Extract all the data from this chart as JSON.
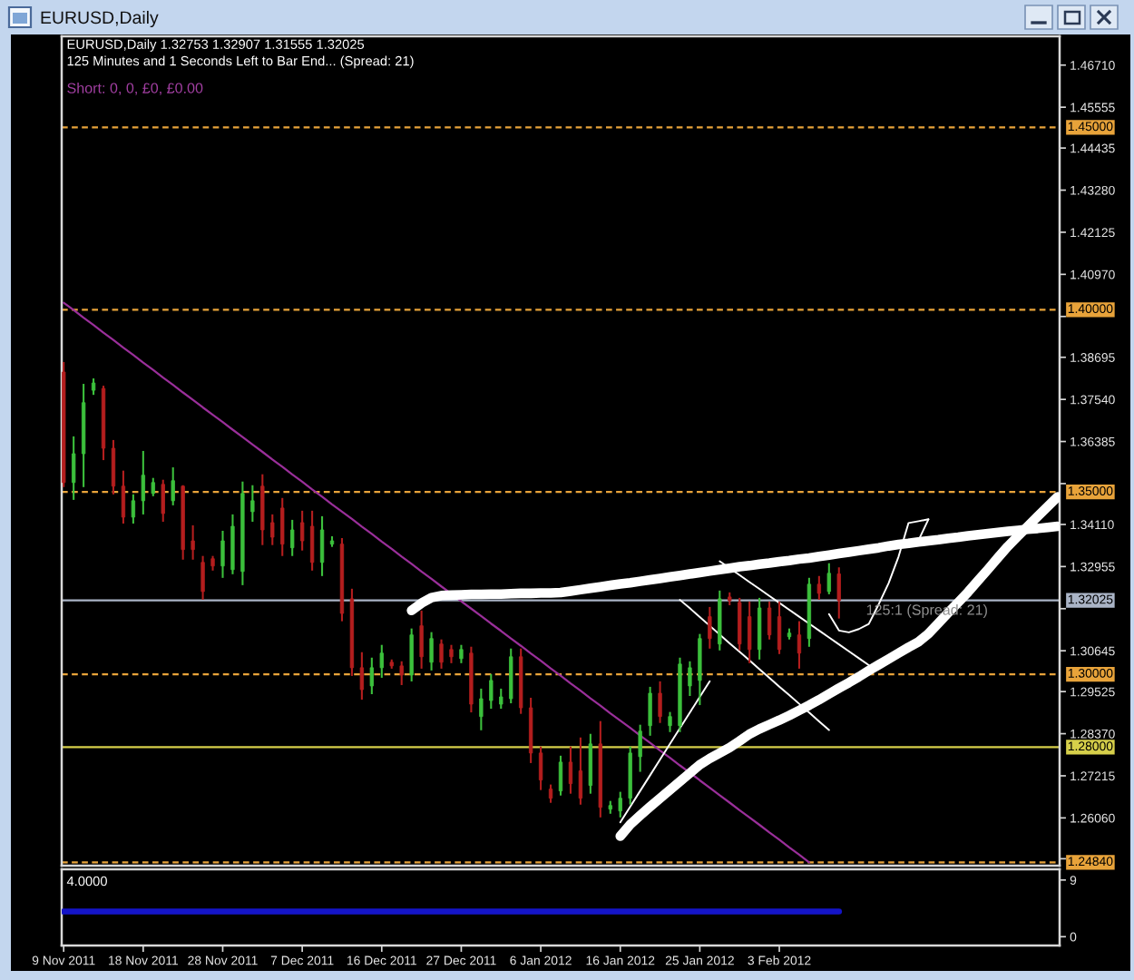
{
  "chart_data": [
    {
      "type": "candlestick",
      "title": "EURUSD,Daily",
      "subtitle": "EURUSD,Daily 1.32753 1.32907 1.31555 1.32025",
      "annotations": [
        "125 Minutes and 1 Seconds Left to Bar End... (Spread: 21)",
        "Short: 0, 0, £0, £0.00",
        "125:1 (Spread: 21)"
      ],
      "categories": [
        null,
        null,
        null,
        null,
        null,
        null,
        null,
        null,
        null,
        null,
        null,
        null,
        null,
        null,
        null,
        null,
        null,
        null,
        null,
        null,
        null,
        null,
        null,
        null,
        null,
        null,
        null,
        null,
        null,
        null,
        null,
        null,
        null,
        null,
        null,
        null,
        null,
        null,
        null,
        null,
        null,
        null,
        null,
        null,
        null,
        null,
        null,
        null,
        null,
        null,
        null,
        null,
        null,
        null,
        null,
        null,
        null,
        null,
        null,
        null,
        null,
        null,
        null,
        null,
        null,
        null,
        null,
        null,
        null,
        null,
        null,
        null,
        null,
        null,
        null,
        null,
        null,
        null,
        null,
        null,
        null,
        null,
        null,
        null,
        null,
        null,
        null,
        null,
        null,
        null,
        null,
        null,
        null,
        null,
        null,
        null,
        null,
        null,
        null,
        null,
        null
      ],
      "ohlc": [
        [
          1.3829,
          1.3854,
          1.3516,
          1.3526
        ],
        [
          1.3526,
          1.365,
          1.3481,
          1.3605
        ],
        [
          1.3605,
          1.3794,
          1.3516,
          1.3745
        ],
        [
          1.3779,
          1.3809,
          1.3769,
          1.3799
        ],
        [
          1.3784,
          1.3789,
          1.359,
          1.362
        ],
        [
          1.362,
          1.364,
          1.3496,
          1.3516
        ],
        [
          1.3516,
          1.3556,
          1.3416,
          1.3431
        ],
        [
          1.3431,
          1.3491,
          1.3416,
          1.3476
        ],
        [
          1.3476,
          1.361,
          1.3441,
          1.3546
        ],
        [
          1.3496,
          1.3536,
          1.3491,
          1.3526
        ],
        [
          1.3521,
          1.3531,
          1.3421,
          1.3441
        ],
        [
          1.3476,
          1.3565,
          1.3466,
          1.3531
        ],
        [
          1.3516,
          1.3516,
          1.3317,
          1.3342
        ],
        [
          1.3366,
          1.3406,
          1.3317,
          1.3342
        ],
        [
          1.3307,
          1.3322,
          1.3207,
          1.3227
        ],
        [
          1.3317,
          1.3322,
          1.3287,
          1.3297
        ],
        [
          1.3297,
          1.3391,
          1.3267,
          1.3366
        ],
        [
          1.3287,
          1.3436,
          1.3277,
          1.3406
        ],
        [
          1.3282,
          1.3526,
          1.3247,
          1.3496
        ],
        [
          1.3446,
          1.3516,
          1.3421,
          1.3476
        ],
        [
          1.3516,
          1.3546,
          1.3357,
          1.3396
        ],
        [
          1.3416,
          1.3436,
          1.3357,
          1.3376
        ],
        [
          1.3456,
          1.3481,
          1.3327,
          1.3357
        ],
        [
          1.3347,
          1.3421,
          1.3327,
          1.3396
        ],
        [
          1.3416,
          1.3446,
          1.3342,
          1.3366
        ],
        [
          1.3406,
          1.3446,
          1.3287,
          1.3307
        ],
        [
          1.3307,
          1.3431,
          1.3272,
          1.3396
        ],
        [
          1.3357,
          1.3376,
          1.3352,
          1.3366
        ],
        [
          1.3357,
          1.3371,
          1.3148,
          1.3167
        ],
        [
          1.3207,
          1.3232,
          1.2998,
          1.3018
        ],
        [
          1.3018,
          1.3058,
          1.2933,
          1.2958
        ],
        [
          1.2968,
          1.3043,
          1.2948,
          1.3018
        ],
        [
          1.3018,
          1.3078,
          1.2993,
          1.3058
        ],
        [
          1.3033,
          1.3038,
          1.3018,
          1.3023
        ],
        [
          1.3023,
          1.3033,
          1.2973,
          1.2998
        ],
        [
          1.2998,
          1.3123,
          1.2983,
          1.3108
        ],
        [
          1.3133,
          1.3172,
          1.3018,
          1.3048
        ],
        [
          1.3033,
          1.3113,
          1.3013,
          1.3098
        ],
        [
          1.3083,
          1.3093,
          1.3018,
          1.3033
        ],
        [
          1.3068,
          1.3078,
          1.3033,
          1.3048
        ],
        [
          1.3043,
          1.3078,
          1.3033,
          1.3068
        ],
        [
          1.3058,
          1.3073,
          1.2898,
          1.2918
        ],
        [
          1.2884,
          1.2958,
          1.2849,
          1.2933
        ],
        [
          1.2928,
          1.2998,
          1.2908,
          1.2983
        ],
        [
          1.2918,
          1.2958,
          1.2908,
          1.2938
        ],
        [
          1.2933,
          1.3068,
          1.2923,
          1.3048
        ],
        [
          1.3048,
          1.3068,
          1.2894,
          1.2908
        ],
        [
          1.2908,
          1.2933,
          1.2759,
          1.2784
        ],
        [
          1.2784,
          1.2799,
          1.2685,
          1.271
        ],
        [
          1.2685,
          1.2695,
          1.265,
          1.266
        ],
        [
          1.268,
          1.2774,
          1.267,
          1.2759
        ],
        [
          1.2759,
          1.2799,
          1.2675,
          1.27
        ],
        [
          1.2735,
          1.2824,
          1.2645,
          1.266
        ],
        [
          1.2695,
          1.2834,
          1.2675,
          1.2809
        ],
        [
          1.2809,
          1.2869,
          1.261,
          1.2635
        ],
        [
          1.263,
          1.265,
          1.262,
          1.264
        ],
        [
          1.2625,
          1.2675,
          1.261,
          1.266
        ],
        [
          1.266,
          1.2799,
          1.2645,
          1.2784
        ],
        [
          1.2774,
          1.2859,
          1.2735,
          1.2844
        ],
        [
          1.2859,
          1.2963,
          1.2834,
          1.2948
        ],
        [
          1.2948,
          1.2978,
          1.2869,
          1.2884
        ],
        [
          1.2859,
          1.2894,
          1.2844,
          1.2884
        ],
        [
          1.2859,
          1.3043,
          1.2844,
          1.3028
        ],
        [
          1.2968,
          1.3033,
          1.2943,
          1.3018
        ],
        [
          1.2983,
          1.3108,
          1.2918,
          1.3098
        ],
        [
          1.3158,
          1.3182,
          1.3073,
          1.3098
        ],
        [
          1.3083,
          1.3227,
          1.3068,
          1.3207
        ],
        [
          1.3212,
          1.3222,
          1.3192,
          1.3202
        ],
        [
          1.3197,
          1.3207,
          1.3068,
          1.3083
        ],
        [
          1.3158,
          1.3197,
          1.3033,
          1.3068
        ],
        [
          1.3068,
          1.3207,
          1.3043,
          1.3182
        ],
        [
          1.3182,
          1.3197,
          1.3098,
          1.3108
        ],
        [
          1.3158,
          1.3197,
          1.3058,
          1.3068
        ],
        [
          1.3103,
          1.3123,
          1.3098,
          1.3113
        ],
        [
          1.3108,
          1.3143,
          1.3018,
          1.3058
        ],
        [
          1.3098,
          1.3262,
          1.3078,
          1.3247
        ],
        [
          1.3247,
          1.3267,
          1.3207,
          1.3222
        ],
        [
          1.3227,
          1.3302,
          1.3222,
          1.3277
        ],
        [
          1.32753,
          1.32907,
          1.31555,
          1.32025
        ],
        null,
        null,
        null,
        null,
        null,
        null,
        null,
        null,
        null,
        null,
        null,
        null,
        null,
        null,
        null,
        null,
        null,
        null,
        null,
        null,
        null,
        null
      ],
      "colors": [
        "#b41e1e",
        "#3cc03c",
        "#3cc03c",
        "#3cc03c",
        "#b41e1e",
        "#b41e1e",
        "#b41e1e",
        "#3cc03c",
        "#3cc03c",
        "#3cc03c",
        "#b41e1e",
        "#3cc03c",
        "#b41e1e",
        "#b41e1e",
        "#b41e1e",
        "#b41e1e",
        "#3cc03c",
        "#3cc03c",
        "#3cc03c",
        "#3cc03c",
        "#b41e1e",
        "#b41e1e",
        "#b41e1e",
        "#3cc03c",
        "#b41e1e",
        "#b41e1e",
        "#3cc03c",
        "#3cc03c",
        "#b41e1e",
        "#b41e1e",
        "#b41e1e",
        "#3cc03c",
        "#3cc03c",
        "#b41e1e",
        "#b41e1e",
        "#3cc03c",
        "#b41e1e",
        "#3cc03c",
        "#b41e1e",
        "#b41e1e",
        "#3cc03c",
        "#b41e1e",
        "#3cc03c",
        "#3cc03c",
        "#3cc03c",
        "#3cc03c",
        "#b41e1e",
        "#b41e1e",
        "#b41e1e",
        "#b41e1e",
        "#3cc03c",
        "#b41e1e",
        "#b41e1e",
        "#3cc03c",
        "#b41e1e",
        "#3cc03c",
        "#3cc03c",
        "#3cc03c",
        "#3cc03c",
        "#3cc03c",
        "#b41e1e",
        "#3cc03c",
        "#3cc03c",
        "#3cc03c",
        "#3cc03c",
        "#b41e1e",
        "#3cc03c",
        "#b41e1e",
        "#b41e1e",
        "#b41e1e",
        "#3cc03c",
        "#b41e1e",
        "#b41e1e",
        "#3cc03c",
        "#b41e1e",
        "#3cc03c",
        "#b41e1e",
        "#3cc03c",
        "#b41e1e",
        null,
        null,
        null,
        null,
        null,
        null,
        null,
        null,
        null,
        null,
        null,
        null,
        null,
        null,
        null,
        null,
        null,
        null,
        null,
        null,
        null,
        null
      ],
      "series": [
        {
          "type": "line",
          "color": "#9a2f9a",
          "values": [
            1.4019,
            1.3999,
            1.3978,
            1.3958,
            1.3937,
            1.3917,
            1.3896,
            1.3876,
            1.3855,
            1.3835,
            1.3814,
            1.3794,
            1.3773,
            1.3753,
            1.3732,
            1.3712,
            1.3692,
            1.3671,
            1.3651,
            1.363,
            1.361,
            1.3589,
            1.3569,
            1.3548,
            1.3528,
            1.3507,
            1.3487,
            1.3466,
            1.3446,
            1.3426,
            1.3405,
            1.3385,
            1.3364,
            1.3344,
            1.3323,
            1.3303,
            1.3282,
            1.3262,
            1.3241,
            1.3221,
            1.32,
            1.318,
            1.316,
            1.3139,
            1.3119,
            1.3098,
            1.3078,
            1.3057,
            1.3037,
            1.3016,
            1.2996,
            1.2975,
            1.2955,
            1.2934,
            1.2914,
            1.2893,
            1.2873,
            1.2853,
            1.2832,
            1.2812,
            1.2791,
            1.2771,
            1.275,
            1.273,
            1.2709,
            1.2689,
            1.2668,
            1.2648,
            1.2627,
            1.2607,
            1.2587,
            1.2566,
            1.2546,
            1.2525,
            1.2505,
            1.2484,
            null,
            null,
            null,
            null,
            null,
            null,
            null,
            null,
            null,
            null,
            null,
            null,
            null,
            null,
            null,
            null,
            null,
            null,
            null,
            null,
            null,
            null,
            null,
            null,
            null
          ]
        },
        {
          "type": "line",
          "color": "#ffffff",
          "values": [
            null,
            null,
            null,
            null,
            null,
            null,
            null,
            null,
            null,
            null,
            null,
            null,
            null,
            null,
            null,
            null,
            null,
            null,
            null,
            null,
            null,
            null,
            null,
            null,
            null,
            null,
            null,
            null,
            null,
            null,
            null,
            null,
            null,
            null,
            null,
            1.3175,
            1.3195,
            1.321,
            1.3216,
            1.3217,
            1.3218,
            1.3219,
            1.3219,
            1.322,
            1.322,
            1.3221,
            1.3222,
            1.3222,
            1.3223,
            1.3223,
            1.3224,
            1.3228,
            1.3232,
            1.3236,
            1.324,
            1.3244,
            1.3248,
            1.3251,
            1.3255,
            1.3259,
            1.3263,
            1.3267,
            1.3271,
            1.3275,
            1.3279,
            1.3283,
            1.3287,
            1.3291,
            1.3295,
            1.3298,
            1.3302,
            1.3305,
            1.3309,
            1.3312,
            1.3316,
            1.3319,
            1.3323,
            1.3327,
            1.3331,
            1.3335,
            1.3339,
            1.3343,
            1.3347,
            1.3352,
            1.3356,
            1.3359,
            1.3363,
            1.3366,
            1.3369,
            1.3373,
            1.3376,
            1.338,
            1.3383,
            1.3386,
            1.3389,
            1.3392,
            1.3395,
            1.3398,
            1.34,
            1.3403,
            1.3406
          ]
        },
        {
          "type": "line",
          "color": "#ffffff",
          "values": [
            null,
            null,
            null,
            null,
            null,
            null,
            null,
            null,
            null,
            null,
            null,
            null,
            null,
            null,
            null,
            null,
            null,
            null,
            null,
            null,
            null,
            null,
            null,
            null,
            null,
            null,
            null,
            null,
            null,
            null,
            null,
            null,
            null,
            null,
            null,
            null,
            null,
            null,
            null,
            null,
            null,
            null,
            null,
            null,
            null,
            null,
            null,
            null,
            null,
            null,
            null,
            null,
            null,
            null,
            null,
            null,
            1.2556,
            1.2588,
            1.2613,
            1.2637,
            1.266,
            1.2683,
            1.2706,
            1.2729,
            1.2752,
            1.2769,
            1.2784,
            1.2799,
            1.2817,
            1.2836,
            1.285,
            1.2862,
            1.2874,
            1.2887,
            1.2901,
            1.2915,
            1.293,
            1.2946,
            1.2962,
            1.2977,
            1.2993,
            1.301,
            1.3026,
            1.3042,
            1.3058,
            1.3074,
            1.3089,
            1.3111,
            1.314,
            1.3169,
            1.3197,
            1.3226,
            1.3257,
            1.3288,
            1.332,
            1.3351,
            1.3379,
            1.3406,
            1.3433,
            1.346,
            1.3487
          ]
        },
        {
          "type": "line",
          "color": "#ffffff",
          "values": [
            null,
            null,
            null,
            null,
            null,
            null,
            null,
            null,
            null,
            null,
            null,
            null,
            null,
            null,
            null,
            null,
            null,
            null,
            null,
            null,
            null,
            null,
            null,
            null,
            null,
            null,
            null,
            null,
            null,
            null,
            null,
            null,
            null,
            null,
            null,
            null,
            null,
            null,
            null,
            null,
            null,
            null,
            null,
            null,
            null,
            null,
            null,
            null,
            null,
            null,
            null,
            null,
            null,
            null,
            null,
            null,
            1.2594,
            1.2637,
            1.268,
            1.2723,
            1.2766,
            1.2809,
            1.2852,
            1.2895,
            1.2938,
            1.2981,
            null,
            null,
            null,
            null,
            null,
            null,
            null,
            null,
            null,
            null,
            null,
            null,
            null,
            null,
            null,
            null,
            null,
            null,
            null,
            null,
            null,
            null,
            null,
            null,
            null,
            null,
            null,
            null,
            null,
            null,
            null,
            null,
            null,
            null,
            null
          ]
        },
        {
          "type": "line",
          "color": "#ffffff",
          "values": [
            null,
            null,
            null,
            null,
            null,
            null,
            null,
            null,
            null,
            null,
            null,
            null,
            null,
            null,
            null,
            null,
            null,
            null,
            null,
            null,
            null,
            null,
            null,
            null,
            null,
            null,
            null,
            null,
            null,
            null,
            null,
            null,
            null,
            null,
            null,
            null,
            null,
            null,
            null,
            null,
            null,
            null,
            null,
            null,
            null,
            null,
            null,
            null,
            null,
            null,
            null,
            null,
            null,
            null,
            null,
            null,
            null,
            null,
            null,
            null,
            null,
            null,
            1.3204,
            1.3181,
            1.3157,
            1.3133,
            1.3109,
            1.3085,
            1.3062,
            1.3038,
            1.3014,
            1.299,
            1.2966,
            1.2943,
            1.2919,
            1.2895,
            1.2871,
            1.2847,
            null,
            null,
            null,
            null,
            null,
            null,
            null,
            null,
            null,
            null,
            null,
            null,
            null,
            null,
            null,
            null,
            null,
            null,
            null,
            null,
            null,
            null,
            null
          ]
        },
        {
          "type": "line",
          "color": "#ffffff",
          "values": [
            null,
            null,
            null,
            null,
            null,
            null,
            null,
            null,
            null,
            null,
            null,
            null,
            null,
            null,
            null,
            null,
            null,
            null,
            null,
            null,
            null,
            null,
            null,
            null,
            null,
            null,
            null,
            null,
            null,
            null,
            null,
            null,
            null,
            null,
            null,
            null,
            null,
            null,
            null,
            null,
            null,
            null,
            null,
            null,
            null,
            null,
            null,
            null,
            null,
            null,
            null,
            null,
            null,
            null,
            null,
            null,
            null,
            null,
            null,
            null,
            null,
            null,
            null,
            null,
            null,
            null,
            1.331,
            1.3291,
            1.3272,
            1.3253,
            1.3234,
            1.3215,
            1.3196,
            1.3177,
            1.3158,
            1.3139,
            1.312,
            1.3101,
            1.3082,
            1.3063,
            1.3044,
            1.3025,
            null,
            null,
            null,
            null,
            null,
            null,
            null,
            null,
            null,
            null,
            null,
            null,
            null,
            null,
            null,
            null,
            null,
            null,
            null
          ]
        },
        {
          "type": "line",
          "color": "#ffffff",
          "values": [
            null,
            null,
            null,
            null,
            null,
            null,
            null,
            null,
            null,
            null,
            null,
            null,
            null,
            null,
            null,
            null,
            null,
            null,
            null,
            null,
            null,
            null,
            null,
            null,
            null,
            null,
            null,
            null,
            null,
            null,
            null,
            null,
            null,
            null,
            null,
            null,
            null,
            null,
            null,
            null,
            null,
            null,
            null,
            null,
            null,
            null,
            null,
            null,
            null,
            null,
            null,
            null,
            null,
            null,
            null,
            null,
            null,
            null,
            null,
            null,
            null,
            null,
            null,
            null,
            null,
            null,
            null,
            null,
            null,
            null,
            null,
            null,
            null,
            null,
            null,
            null,
            null,
            1.3165,
            1.312,
            1.3115,
            1.3124,
            1.3138,
            1.3192,
            1.325,
            1.3323,
            1.3415,
            1.342,
            1.3425,
            null,
            null,
            null,
            null,
            null,
            null,
            null,
            null,
            null,
            null,
            null,
            null,
            null
          ]
        },
        {
          "type": "line",
          "color": "#ffffff",
          "values": [
            null,
            null,
            null,
            null,
            null,
            null,
            null,
            null,
            null,
            null,
            null,
            null,
            null,
            null,
            null,
            null,
            null,
            null,
            null,
            null,
            null,
            null,
            null,
            null,
            null,
            null,
            null,
            null,
            null,
            null,
            null,
            null,
            null,
            null,
            null,
            null,
            null,
            null,
            null,
            null,
            null,
            null,
            null,
            null,
            null,
            null,
            null,
            null,
            null,
            null,
            null,
            null,
            null,
            null,
            null,
            null,
            null,
            null,
            null,
            null,
            null,
            null,
            null,
            null,
            null,
            null,
            null,
            null,
            null,
            null,
            null,
            null,
            null,
            null,
            null,
            null,
            null,
            null,
            null,
            null,
            null,
            null,
            null,
            null,
            null,
            null,
            1.3367,
            1.3425,
            null,
            null,
            null,
            null,
            null,
            null,
            null,
            null,
            null,
            null,
            null,
            null,
            null
          ]
        }
      ],
      "ylim": [
        1.2475,
        1.475
      ],
      "yticks": [
        {
          "value": 1.4671,
          "label": "1.46710"
        },
        1.45555,
        1.44435,
        {
          "value": 1.4328,
          "label": "1.43280"
        },
        1.42125,
        {
          "value": 1.4097,
          "label": "1.40970"
        },
        {
          "value": 1.39815,
          "label": null
        },
        1.38695,
        {
          "value": 1.3754,
          "label": "1.37540"
        },
        1.36385,
        {
          "value": 1.3523,
          "label": null
        },
        {
          "value": 1.3411,
          "label": "1.34110"
        },
        1.32955,
        {
          "value": 1.318,
          "label": null
        },
        1.30645,
        1.29525,
        {
          "value": 1.2837,
          "label": "1.28370"
        },
        1.27215,
        {
          "value": 1.2606,
          "label": "1.26060"
        },
        {
          "value": 1.2494,
          "label": null
        }
      ],
      "ref_lines": [
        {
          "axis": "y",
          "value": 1.45,
          "label": "1.45000",
          "color": "#e8a33a",
          "line_style": "dashed"
        },
        {
          "axis": "y",
          "value": 1.4,
          "label": "1.40000",
          "color": "#e8a33a",
          "line_style": "dashed"
        },
        {
          "axis": "y",
          "value": 1.35,
          "label": "1.35000",
          "color": "#e8a33a",
          "line_style": "dashed"
        },
        {
          "axis": "y",
          "value": 1.32025,
          "label": "1.32025",
          "color": "#aab4c6",
          "line_style": "solid"
        },
        {
          "axis": "y",
          "value": 1.3,
          "label": "1.30000",
          "color": "#e8a33a",
          "line_style": "dashed"
        },
        {
          "axis": "y",
          "value": 1.28,
          "label": "1.28000",
          "color": "#d6cf4a",
          "line_style": "solid"
        },
        {
          "axis": "y",
          "value": 1.2484,
          "label": "1.24840",
          "color": "#e8a33a",
          "line_style": "dashed"
        }
      ],
      "tick_labels": "y"
    },
    {
      "type": "line",
      "annotations": [
        "4.0000"
      ],
      "categories": [
        "9 Nov 2011",
        null,
        null,
        null,
        null,
        null,
        null,
        null,
        "18 Nov 2011",
        null,
        null,
        null,
        null,
        null,
        null,
        null,
        "28 Nov 2011",
        null,
        null,
        null,
        null,
        null,
        null,
        null,
        "7 Dec 2011",
        null,
        null,
        null,
        null,
        null,
        null,
        null,
        "16 Dec 2011",
        null,
        null,
        null,
        null,
        null,
        null,
        null,
        "27 Dec 2011",
        null,
        null,
        null,
        null,
        null,
        null,
        null,
        "6 Jan 2012",
        null,
        null,
        null,
        null,
        null,
        null,
        null,
        "16 Jan 2012",
        null,
        null,
        null,
        null,
        null,
        null,
        null,
        "25 Jan 2012",
        null,
        null,
        null,
        null,
        null,
        null,
        null,
        "3 Feb 2012",
        null,
        null,
        null,
        null,
        null,
        null,
        null,
        null,
        null,
        null,
        null,
        null,
        null,
        null,
        null,
        null,
        null,
        null,
        null,
        null,
        null,
        null,
        null,
        null,
        null,
        null,
        null,
        null
      ],
      "series": [
        {
          "color": "#1414c8",
          "values": [
            4,
            4,
            4,
            4,
            4,
            4,
            4,
            4,
            4,
            4,
            4,
            4,
            4,
            4,
            4,
            4,
            4,
            4,
            4,
            4,
            4,
            4,
            4,
            4,
            4,
            4,
            4,
            4,
            4,
            4,
            4,
            4,
            4,
            4,
            4,
            4,
            4,
            4,
            4,
            4,
            4,
            4,
            4,
            4,
            4,
            4,
            4,
            4,
            4,
            4,
            4,
            4,
            4,
            4,
            4,
            4,
            4,
            4,
            4,
            4,
            4,
            4,
            4,
            4,
            4,
            4,
            4,
            4,
            4,
            4,
            4,
            4,
            4,
            4,
            4,
            4,
            4,
            4,
            4,
            null,
            null,
            null,
            null,
            null,
            null,
            null,
            null,
            null,
            null,
            null,
            null,
            null,
            null,
            null,
            null,
            null,
            null,
            null,
            null,
            null,
            null
          ]
        }
      ],
      "ylim": [
        -1.4,
        10.7
      ],
      "yticks": [
        0,
        9
      ]
    }
  ]
}
